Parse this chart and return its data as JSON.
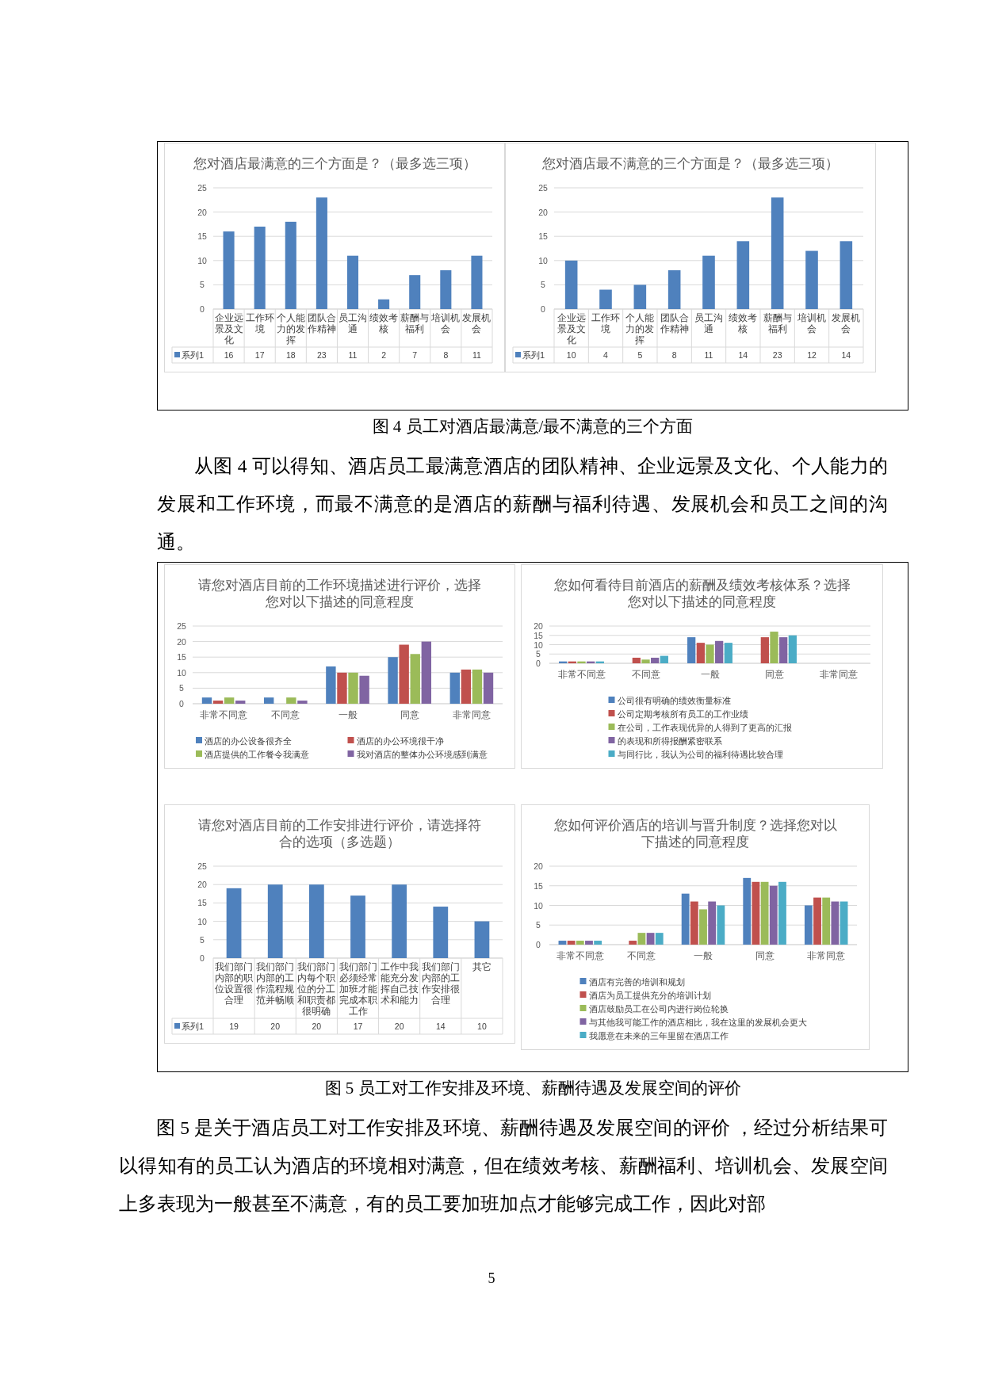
{
  "chart_data": [
    {
      "type": "bar",
      "title": "您对酒店最满意的三个方面是？（最多选三项）",
      "categories": [
        "企业远景及文化",
        "工作环境",
        "个人能力的发挥",
        "团队合作精神",
        "员工沟通",
        "绩效考核",
        "薪酬与福利",
        "培训机会",
        "发展机会"
      ],
      "series": [
        {
          "name": "系列1",
          "color": "#4f81bd",
          "values": [
            16,
            17,
            18,
            23,
            11,
            2,
            7,
            8,
            11
          ]
        }
      ],
      "ylim": [
        0,
        25
      ],
      "yticks": [
        0,
        5,
        10,
        15,
        20,
        25
      ],
      "grid": "y",
      "data_labels": true
    },
    {
      "type": "bar",
      "title": "您对酒店最不满意的三个方面是？（最多选三项）",
      "categories": [
        "企业远景及文化",
        "工作环境",
        "个人能力的发挥",
        "团队合作精神",
        "员工沟通",
        "绩效考核",
        "薪酬与福利",
        "培训机会",
        "发展机会"
      ],
      "series": [
        {
          "name": "系列1",
          "color": "#4f81bd",
          "values": [
            10,
            4,
            5,
            8,
            11,
            14,
            23,
            12,
            14
          ]
        }
      ],
      "ylim": [
        0,
        25
      ],
      "yticks": [
        0,
        5,
        10,
        15,
        20,
        25
      ],
      "grid": "y",
      "data_labels": true,
      "annotations": [
        "图 4  员工对酒店最满意/最不满意的三个方面",
        "从图 4 可以得知、酒店员工最满意酒店的团队精神、企业远景及文化、个人能力的发展和工作环境，而最不满意的是酒店的薪酬与福利待遇、发展机会和员工之间的沟通。"
      ]
    },
    {
      "type": "bar",
      "title": "请您对酒店目前的工作环境描述进行评价，选择您对以下描述的同意程度",
      "categories": [
        "非常不同意",
        "不同意",
        "一般",
        "同意",
        "非常同意"
      ],
      "series": [
        {
          "name": "酒店的办公设备很齐全",
          "color": "#4f81bd",
          "values": [
            2,
            2,
            12,
            15,
            10
          ]
        },
        {
          "name": "酒店的办公环境很干净",
          "color": "#c0504d",
          "values": [
            1,
            null,
            10,
            19,
            11
          ]
        },
        {
          "name": "酒店提供的工作餐令我满意",
          "color": "#9bbb59",
          "values": [
            2,
            2,
            10,
            16,
            11
          ]
        },
        {
          "name": "我对酒店的整体办公环境感到满意",
          "color": "#8064a2",
          "values": [
            1,
            1,
            9,
            20,
            10
          ]
        }
      ],
      "ylim": [
        0,
        25
      ],
      "yticks": [
        0,
        5,
        10,
        15,
        20,
        25
      ],
      "grid": "y",
      "legend": "bottom"
    },
    {
      "type": "bar",
      "title": "您如何看待目前酒店的薪酬及绩效考核体系？选择您对以下描述的同意程度",
      "categories": [
        "非常不同意",
        "不同意",
        "一般",
        "同意",
        "非常同意"
      ],
      "series": [
        {
          "name": "公司很有明确的绩效衡量标准",
          "color": "#4f81bd",
          "values": [
            1,
            null,
            14,
            null,
            null
          ]
        },
        {
          "name": "公司定期考核所有员工的工作业绩",
          "color": "#c0504d",
          "values": [
            1,
            3,
            11,
            14,
            null
          ]
        },
        {
          "name": "在公司，工作表现优异的人得到了更高的汇报",
          "color": "#9bbb59",
          "values": [
            1,
            2,
            10,
            17,
            null
          ]
        },
        {
          "name": "的表现和所得报酬紧密联系",
          "color": "#8064a2",
          "values": [
            1,
            3,
            12,
            14,
            null
          ]
        },
        {
          "name": "与同行比，我认为公司的福利待遇比较合理",
          "color": "#4bacc6",
          "values": [
            1,
            4,
            11,
            15,
            null
          ]
        }
      ],
      "ylim": [
        0,
        20
      ],
      "yticks": [
        0,
        5,
        10,
        15,
        20
      ],
      "grid": "y",
      "legend": "bottom"
    },
    {
      "type": "bar",
      "title": "请您对酒店目前的工作安排进行评价，请选择符合的选项（多选题）",
      "categories": [
        "我们部门内部的职位设置很合理",
        "我们部门内部的工作流程规范并畅顺",
        "我们部门内每个职位的分工和职责都很明确",
        "我们部门必须经常加班才能完成本职工作",
        "工作中我能充分发挥自己技术和能力",
        "我们部门内部的工作安排很合理",
        "其它"
      ],
      "series": [
        {
          "name": "系列1",
          "color": "#4f81bd",
          "values": [
            19,
            20,
            20,
            17,
            20,
            14,
            10
          ]
        }
      ],
      "ylim": [
        0,
        25
      ],
      "yticks": [
        0,
        5,
        10,
        15,
        20,
        25
      ],
      "grid": "y",
      "data_labels": true
    },
    {
      "type": "bar",
      "title": "您如何评价酒店的培训与晋升制度？选择您对以下描述的同意程度",
      "categories": [
        "非常不同意",
        "不同意",
        "一般",
        "同意",
        "非常同意"
      ],
      "series": [
        {
          "name": "酒店有完善的培训和规划",
          "color": "#4f81bd",
          "values": [
            1,
            null,
            13,
            17,
            10
          ]
        },
        {
          "name": "酒店为员工提供充分的培训计划",
          "color": "#c0504d",
          "values": [
            1,
            1,
            11,
            16,
            12
          ]
        },
        {
          "name": "酒店鼓励员工在公司内进行岗位轮换",
          "color": "#9bbb59",
          "values": [
            1,
            3,
            9,
            16,
            12
          ]
        },
        {
          "name": "与其他我可能工作的酒店相比，我在这里的发展机会更大",
          "color": "#8064a2",
          "values": [
            1,
            3,
            11,
            15,
            11
          ]
        },
        {
          "name": "我愿意在未来的三年里留在酒店工作",
          "color": "#4bacc6",
          "values": [
            1,
            3,
            10,
            16,
            11
          ]
        }
      ],
      "ylim": [
        0,
        20
      ],
      "yticks": [
        0,
        5,
        10,
        15,
        20
      ],
      "grid": "y",
      "legend": "bottom",
      "annotations": [
        "图 5  员工对工作安排及环境、薪酬待遇及发展空间的评价",
        "图 5 是关于酒店员工对工作安排及环境、薪酬待遇及发展空间的评价 ，经过分析结果可以得知有的员工认为酒店的环境相对满意，但在绩效考核、薪酬福利、培训机会、发展空间上多表现为一般甚至不满意，有的员工要加班加点才能够完成工作，因此对部",
        "5"
      ]
    }
  ]
}
